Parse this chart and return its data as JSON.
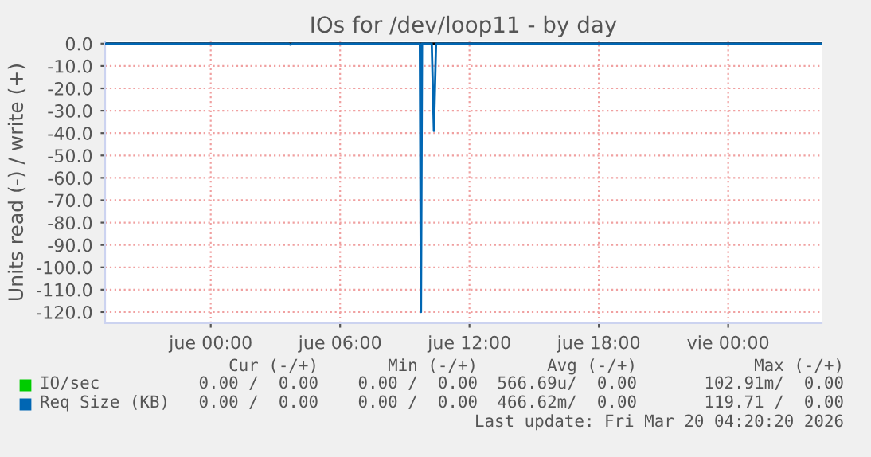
{
  "chart_data": {
    "type": "line",
    "title": "IOs for /dev/loop11 - by day",
    "ylabel": "Units read (-) / write (+)",
    "xlim": [
      "2026-03-18T19:06",
      "2026-03-20T04:20"
    ],
    "xticks": [
      {
        "value": "2026-03-19T00:00",
        "label": "jue 00:00"
      },
      {
        "value": "2026-03-19T06:00",
        "label": "jue 06:00"
      },
      {
        "value": "2026-03-19T12:00",
        "label": "jue 12:00"
      },
      {
        "value": "2026-03-19T18:00",
        "label": "jue 18:00"
      },
      {
        "value": "2026-03-20T00:00",
        "label": "vie 00:00"
      }
    ],
    "ylim": [
      -125,
      1
    ],
    "yticks": [
      {
        "value": 0,
        "label": "0.0"
      },
      {
        "value": -10,
        "label": "-10.0"
      },
      {
        "value": -20,
        "label": "-20.0"
      },
      {
        "value": -30,
        "label": "-30.0"
      },
      {
        "value": -40,
        "label": "-40.0"
      },
      {
        "value": -50,
        "label": "-50.0"
      },
      {
        "value": -60,
        "label": "-60.0"
      },
      {
        "value": -70,
        "label": "-70.0"
      },
      {
        "value": -80,
        "label": "-80.0"
      },
      {
        "value": -90,
        "label": "-90.0"
      },
      {
        "value": -100,
        "label": "-100.0"
      },
      {
        "value": -110,
        "label": "-110.0"
      },
      {
        "value": -120,
        "label": "-120.0"
      }
    ],
    "grid": true,
    "legend": "bottom",
    "ref_lines": [
      {
        "axis": "y",
        "value": 0,
        "color": "#000000"
      }
    ],
    "series": [
      {
        "name": "IO/sec",
        "color": "#00cc00"
      },
      {
        "name": "Req Size (KB)",
        "color": "#0066b3",
        "x": [
          "2026-03-18T19:06",
          "2026-03-19T03:36",
          "2026-03-19T03:42",
          "2026-03-19T03:48",
          "2026-03-19T09:42",
          "2026-03-19T09:45",
          "2026-03-19T09:48",
          "2026-03-19T10:15",
          "2026-03-19T10:21",
          "2026-03-19T10:27",
          "2026-03-20T04:20"
        ],
        "values": [
          0,
          0,
          -0.5,
          0,
          0,
          -120,
          0,
          0,
          -39,
          0,
          0
        ]
      }
    ],
    "annotations": [
      "Cur (-/+)",
      "Min (-/+)",
      "Avg (-/+)",
      "Max (-/+)",
      "0.00 /  0.00",
      "0.00 /  0.00",
      "566.69u/  0.00",
      "102.91m/  0.00",
      "0.00 /  0.00",
      "0.00 /  0.00",
      "466.62m/  0.00",
      "119.71 /  0.00",
      "Last update: Fri Mar 20 04:20:20 2026"
    ]
  }
}
